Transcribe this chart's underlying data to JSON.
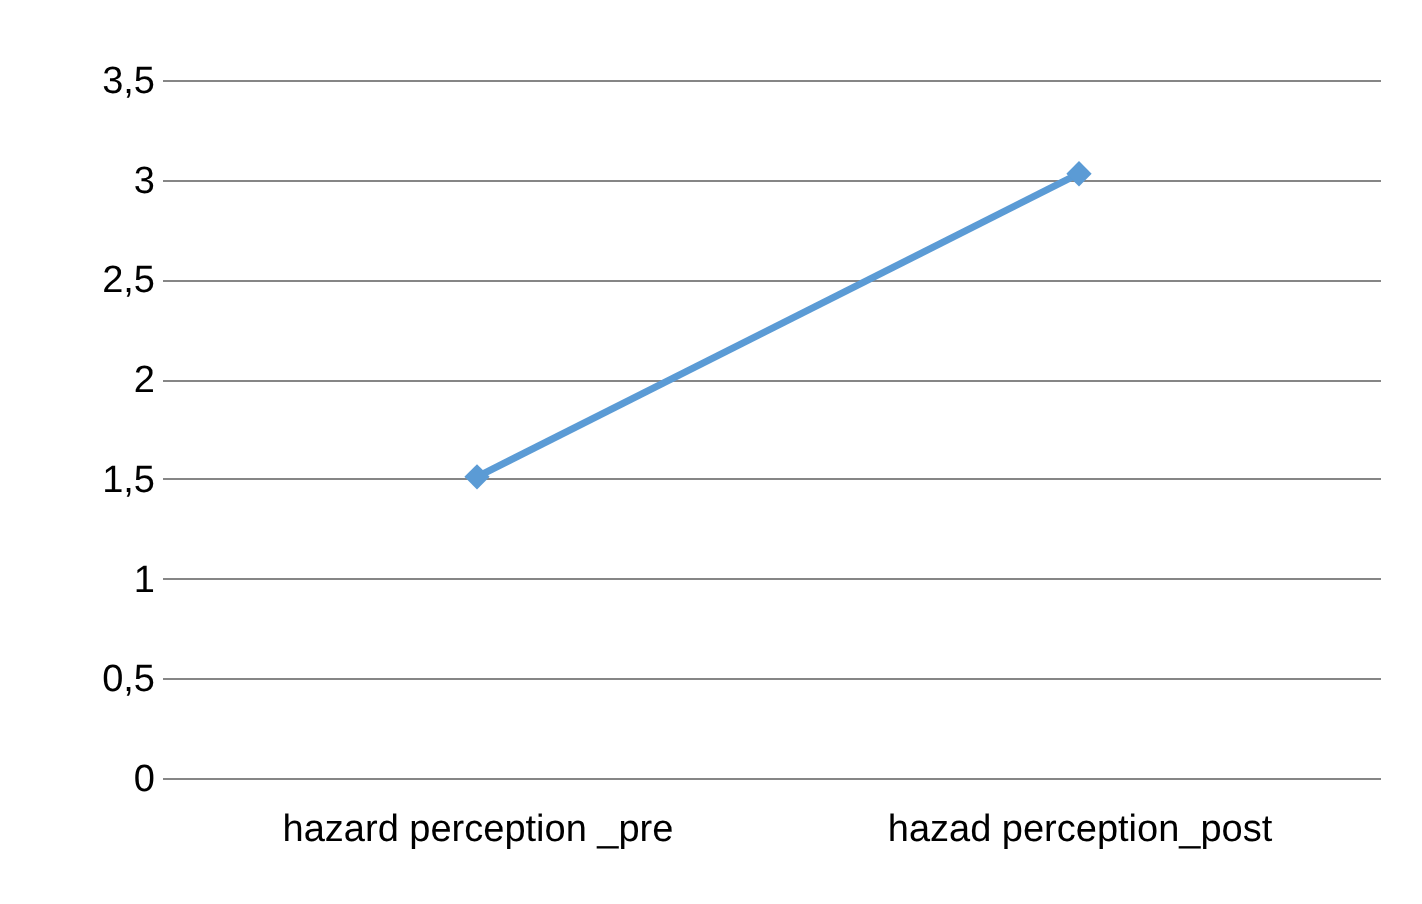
{
  "chart_data": {
    "type": "line",
    "categories": [
      "hazard perception _pre",
      "hazad perception_post"
    ],
    "series": [
      {
        "color": "#5b9bd5",
        "values": [
          1.51,
          3.03
        ]
      }
    ],
    "ylim": [
      0,
      3.5
    ],
    "yticks": [
      {
        "value": 0,
        "label": "0"
      },
      {
        "value": 0.5,
        "label": "0,5"
      },
      {
        "value": 1,
        "label": "1"
      },
      {
        "value": 1.5,
        "label": "1,5"
      },
      {
        "value": 2,
        "label": "2"
      },
      {
        "value": 2.5,
        "label": "2,5"
      },
      {
        "value": 3,
        "label": "3"
      },
      {
        "value": 3.5,
        "label": "3,5"
      }
    ],
    "grid": "y",
    "marker": "diamond",
    "line_style": "solid",
    "legend": false
  }
}
